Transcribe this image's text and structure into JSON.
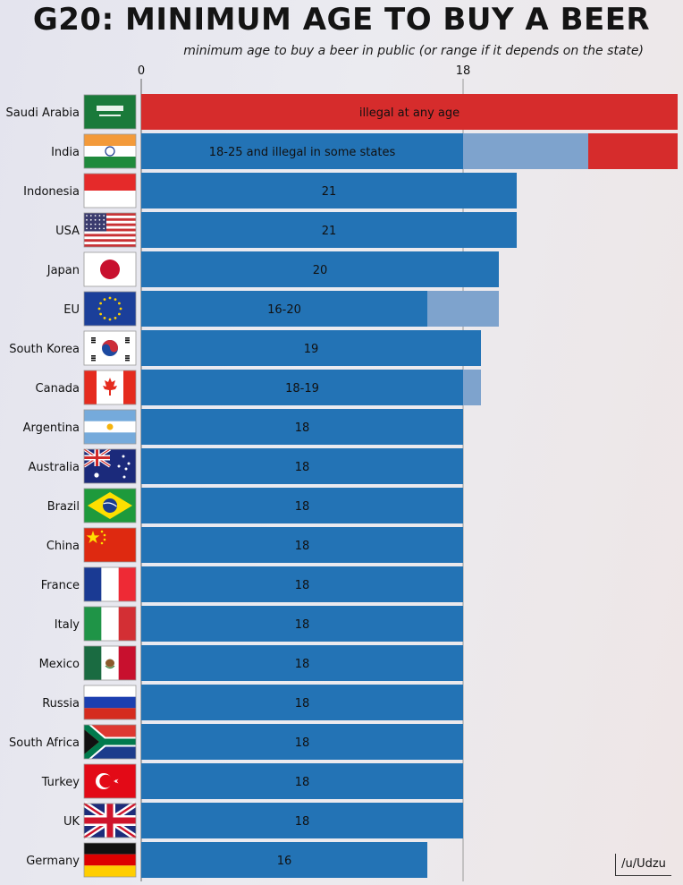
{
  "colors": {
    "legal": "#2373b5",
    "range": "#7ea3cd",
    "illegal": "#d62c2c"
  },
  "chart_data": {
    "type": "bar",
    "orientation": "horizontal",
    "stacked": true,
    "title": "G20: MINIMUM AGE TO BUY A BEER",
    "subtitle": "minimum age to buy a beer in public (or range if it depends on the state)",
    "xlim": [
      0,
      30
    ],
    "xticks": [
      0,
      18
    ],
    "grid": false,
    "legend": "none",
    "rows": [
      {
        "country": "Saudi Arabia",
        "flag": "saudi-arabia-flag",
        "min": 0,
        "max": 0,
        "illegal": true,
        "label": "illegal at any age"
      },
      {
        "country": "India",
        "flag": "india-flag",
        "min": 18,
        "max": 25,
        "illegal": true,
        "label": "18-25 and illegal in some states"
      },
      {
        "country": "Indonesia",
        "flag": "indonesia-flag",
        "min": 21,
        "max": 21,
        "illegal": false,
        "label": "21"
      },
      {
        "country": "USA",
        "flag": "usa-flag",
        "min": 21,
        "max": 21,
        "illegal": false,
        "label": "21"
      },
      {
        "country": "Japan",
        "flag": "japan-flag",
        "min": 20,
        "max": 20,
        "illegal": false,
        "label": "20"
      },
      {
        "country": "EU",
        "flag": "eu-flag",
        "min": 16,
        "max": 20,
        "illegal": false,
        "label": "16-20"
      },
      {
        "country": "South Korea",
        "flag": "south-korea-flag",
        "min": 19,
        "max": 19,
        "illegal": false,
        "label": "19"
      },
      {
        "country": "Canada",
        "flag": "canada-flag",
        "min": 18,
        "max": 19,
        "illegal": false,
        "label": "18-19"
      },
      {
        "country": "Argentina",
        "flag": "argentina-flag",
        "min": 18,
        "max": 18,
        "illegal": false,
        "label": "18"
      },
      {
        "country": "Australia",
        "flag": "australia-flag",
        "min": 18,
        "max": 18,
        "illegal": false,
        "label": "18"
      },
      {
        "country": "Brazil",
        "flag": "brazil-flag",
        "min": 18,
        "max": 18,
        "illegal": false,
        "label": "18"
      },
      {
        "country": "China",
        "flag": "china-flag",
        "min": 18,
        "max": 18,
        "illegal": false,
        "label": "18"
      },
      {
        "country": "France",
        "flag": "france-flag",
        "min": 18,
        "max": 18,
        "illegal": false,
        "label": "18"
      },
      {
        "country": "Italy",
        "flag": "italy-flag",
        "min": 18,
        "max": 18,
        "illegal": false,
        "label": "18"
      },
      {
        "country": "Mexico",
        "flag": "mexico-flag",
        "min": 18,
        "max": 18,
        "illegal": false,
        "label": "18"
      },
      {
        "country": "Russia",
        "flag": "russia-flag",
        "min": 18,
        "max": 18,
        "illegal": false,
        "label": "18"
      },
      {
        "country": "South Africa",
        "flag": "south-africa-flag",
        "min": 18,
        "max": 18,
        "illegal": false,
        "label": "18"
      },
      {
        "country": "Turkey",
        "flag": "turkey-flag",
        "min": 18,
        "max": 18,
        "illegal": false,
        "label": "18"
      },
      {
        "country": "UK",
        "flag": "uk-flag",
        "min": 18,
        "max": 18,
        "illegal": false,
        "label": "18"
      },
      {
        "country": "Germany",
        "flag": "germany-flag",
        "min": 16,
        "max": 16,
        "illegal": false,
        "label": "16"
      }
    ]
  },
  "credit": "/u/Udzu"
}
